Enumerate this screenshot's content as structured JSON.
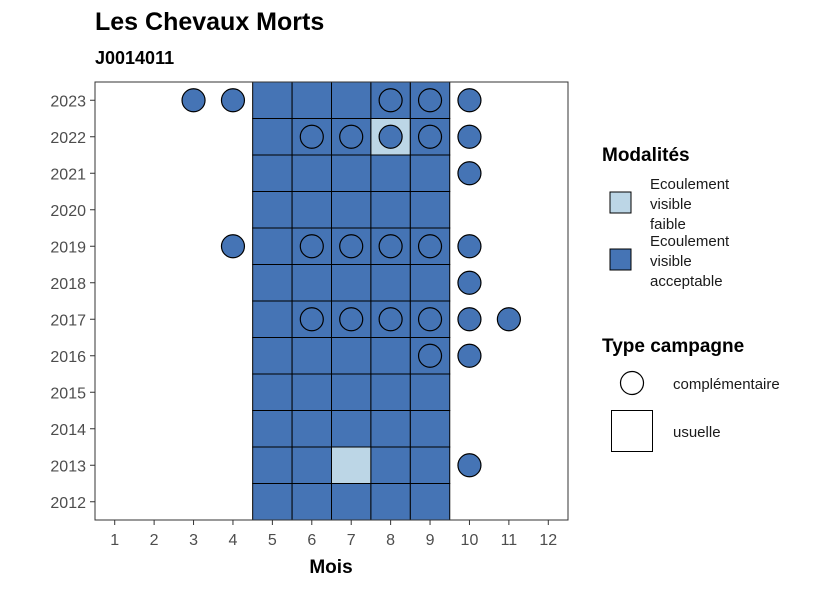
{
  "chart_data": {
    "type": "heatmap",
    "title": "Les Chevaux Morts",
    "subtitle": "J0014011",
    "xlabel": "Mois",
    "ylabel": "",
    "x_ticks": [
      1,
      2,
      3,
      4,
      5,
      6,
      7,
      8,
      9,
      10,
      11,
      12
    ],
    "y_ticks": [
      2012,
      2013,
      2014,
      2015,
      2016,
      2017,
      2018,
      2019,
      2020,
      2021,
      2022,
      2023
    ],
    "xlim": [
      0.5,
      12.5
    ],
    "ylim": [
      2011.5,
      2023.5
    ],
    "grid": false,
    "legend_position": "right",
    "colors": {
      "faible": "#bcd6e6",
      "acceptable": "#4574b5",
      "border": "#000000"
    },
    "legend": {
      "modalites_title": "Modalités",
      "modalites": [
        {
          "key": "faible",
          "label_lines": [
            "Ecoulement",
            "visible",
            "faible"
          ]
        },
        {
          "key": "acceptable",
          "label_lines": [
            "Ecoulement",
            "visible",
            "acceptable"
          ]
        }
      ],
      "type_title": "Type campagne",
      "types": [
        {
          "key": "complementaire",
          "label": "complémentaire"
        },
        {
          "key": "usuelle",
          "label": "usuelle"
        }
      ]
    },
    "observations": [
      {
        "year": 2012,
        "month": 5,
        "type": "usuelle",
        "modalite": "acceptable"
      },
      {
        "year": 2012,
        "month": 6,
        "type": "usuelle",
        "modalite": "acceptable"
      },
      {
        "year": 2012,
        "month": 7,
        "type": "usuelle",
        "modalite": "acceptable"
      },
      {
        "year": 2012,
        "month": 8,
        "type": "usuelle",
        "modalite": "acceptable"
      },
      {
        "year": 2012,
        "month": 9,
        "type": "usuelle",
        "modalite": "acceptable"
      },
      {
        "year": 2013,
        "month": 5,
        "type": "usuelle",
        "modalite": "acceptable"
      },
      {
        "year": 2013,
        "month": 6,
        "type": "usuelle",
        "modalite": "acceptable"
      },
      {
        "year": 2013,
        "month": 7,
        "type": "usuelle",
        "modalite": "faible"
      },
      {
        "year": 2013,
        "month": 8,
        "type": "usuelle",
        "modalite": "acceptable"
      },
      {
        "year": 2013,
        "month": 9,
        "type": "usuelle",
        "modalite": "acceptable"
      },
      {
        "year": 2013,
        "month": 10,
        "type": "complementaire",
        "modalite": "acceptable"
      },
      {
        "year": 2014,
        "month": 5,
        "type": "usuelle",
        "modalite": "acceptable"
      },
      {
        "year": 2014,
        "month": 6,
        "type": "usuelle",
        "modalite": "acceptable"
      },
      {
        "year": 2014,
        "month": 7,
        "type": "usuelle",
        "modalite": "acceptable"
      },
      {
        "year": 2014,
        "month": 8,
        "type": "usuelle",
        "modalite": "acceptable"
      },
      {
        "year": 2014,
        "month": 9,
        "type": "usuelle",
        "modalite": "acceptable"
      },
      {
        "year": 2015,
        "month": 5,
        "type": "usuelle",
        "modalite": "acceptable"
      },
      {
        "year": 2015,
        "month": 6,
        "type": "usuelle",
        "modalite": "acceptable"
      },
      {
        "year": 2015,
        "month": 7,
        "type": "usuelle",
        "modalite": "acceptable"
      },
      {
        "year": 2015,
        "month": 8,
        "type": "usuelle",
        "modalite": "acceptable"
      },
      {
        "year": 2015,
        "month": 9,
        "type": "usuelle",
        "modalite": "acceptable"
      },
      {
        "year": 2016,
        "month": 5,
        "type": "usuelle",
        "modalite": "acceptable"
      },
      {
        "year": 2016,
        "month": 6,
        "type": "usuelle",
        "modalite": "acceptable"
      },
      {
        "year": 2016,
        "month": 7,
        "type": "usuelle",
        "modalite": "acceptable"
      },
      {
        "year": 2016,
        "month": 8,
        "type": "usuelle",
        "modalite": "acceptable"
      },
      {
        "year": 2016,
        "month": 9,
        "type": "usuelle",
        "modalite": "acceptable"
      },
      {
        "year": 2016,
        "month": 9,
        "type": "complementaire",
        "modalite": "acceptable"
      },
      {
        "year": 2016,
        "month": 10,
        "type": "complementaire",
        "modalite": "acceptable"
      },
      {
        "year": 2017,
        "month": 5,
        "type": "usuelle",
        "modalite": "acceptable"
      },
      {
        "year": 2017,
        "month": 6,
        "type": "usuelle",
        "modalite": "acceptable"
      },
      {
        "year": 2017,
        "month": 7,
        "type": "usuelle",
        "modalite": "acceptable"
      },
      {
        "year": 2017,
        "month": 8,
        "type": "usuelle",
        "modalite": "acceptable"
      },
      {
        "year": 2017,
        "month": 9,
        "type": "usuelle",
        "modalite": "acceptable"
      },
      {
        "year": 2017,
        "month": 6,
        "type": "complementaire",
        "modalite": "acceptable"
      },
      {
        "year": 2017,
        "month": 7,
        "type": "complementaire",
        "modalite": "acceptable"
      },
      {
        "year": 2017,
        "month": 8,
        "type": "complementaire",
        "modalite": "acceptable"
      },
      {
        "year": 2017,
        "month": 9,
        "type": "complementaire",
        "modalite": "acceptable"
      },
      {
        "year": 2017,
        "month": 10,
        "type": "complementaire",
        "modalite": "acceptable"
      },
      {
        "year": 2017,
        "month": 11,
        "type": "complementaire",
        "modalite": "acceptable"
      },
      {
        "year": 2018,
        "month": 5,
        "type": "usuelle",
        "modalite": "acceptable"
      },
      {
        "year": 2018,
        "month": 6,
        "type": "usuelle",
        "modalite": "acceptable"
      },
      {
        "year": 2018,
        "month": 7,
        "type": "usuelle",
        "modalite": "acceptable"
      },
      {
        "year": 2018,
        "month": 8,
        "type": "usuelle",
        "modalite": "acceptable"
      },
      {
        "year": 2018,
        "month": 9,
        "type": "usuelle",
        "modalite": "acceptable"
      },
      {
        "year": 2018,
        "month": 10,
        "type": "complementaire",
        "modalite": "acceptable"
      },
      {
        "year": 2019,
        "month": 5,
        "type": "usuelle",
        "modalite": "acceptable"
      },
      {
        "year": 2019,
        "month": 6,
        "type": "usuelle",
        "modalite": "acceptable"
      },
      {
        "year": 2019,
        "month": 7,
        "type": "usuelle",
        "modalite": "acceptable"
      },
      {
        "year": 2019,
        "month": 8,
        "type": "usuelle",
        "modalite": "acceptable"
      },
      {
        "year": 2019,
        "month": 9,
        "type": "usuelle",
        "modalite": "acceptable"
      },
      {
        "year": 2019,
        "month": 4,
        "type": "complementaire",
        "modalite": "acceptable"
      },
      {
        "year": 2019,
        "month": 6,
        "type": "complementaire",
        "modalite": "acceptable"
      },
      {
        "year": 2019,
        "month": 7,
        "type": "complementaire",
        "modalite": "acceptable"
      },
      {
        "year": 2019,
        "month": 8,
        "type": "complementaire",
        "modalite": "acceptable"
      },
      {
        "year": 2019,
        "month": 9,
        "type": "complementaire",
        "modalite": "acceptable"
      },
      {
        "year": 2019,
        "month": 10,
        "type": "complementaire",
        "modalite": "acceptable"
      },
      {
        "year": 2020,
        "month": 5,
        "type": "usuelle",
        "modalite": "acceptable"
      },
      {
        "year": 2020,
        "month": 6,
        "type": "usuelle",
        "modalite": "acceptable"
      },
      {
        "year": 2020,
        "month": 7,
        "type": "usuelle",
        "modalite": "acceptable"
      },
      {
        "year": 2020,
        "month": 8,
        "type": "usuelle",
        "modalite": "acceptable"
      },
      {
        "year": 2020,
        "month": 9,
        "type": "usuelle",
        "modalite": "acceptable"
      },
      {
        "year": 2021,
        "month": 5,
        "type": "usuelle",
        "modalite": "acceptable"
      },
      {
        "year": 2021,
        "month": 6,
        "type": "usuelle",
        "modalite": "acceptable"
      },
      {
        "year": 2021,
        "month": 7,
        "type": "usuelle",
        "modalite": "acceptable"
      },
      {
        "year": 2021,
        "month": 8,
        "type": "usuelle",
        "modalite": "acceptable"
      },
      {
        "year": 2021,
        "month": 9,
        "type": "usuelle",
        "modalite": "acceptable"
      },
      {
        "year": 2021,
        "month": 10,
        "type": "complementaire",
        "modalite": "acceptable"
      },
      {
        "year": 2022,
        "month": 5,
        "type": "usuelle",
        "modalite": "acceptable"
      },
      {
        "year": 2022,
        "month": 6,
        "type": "usuelle",
        "modalite": "acceptable"
      },
      {
        "year": 2022,
        "month": 7,
        "type": "usuelle",
        "modalite": "acceptable"
      },
      {
        "year": 2022,
        "month": 8,
        "type": "usuelle",
        "modalite": "faible"
      },
      {
        "year": 2022,
        "month": 9,
        "type": "usuelle",
        "modalite": "acceptable"
      },
      {
        "year": 2022,
        "month": 6,
        "type": "complementaire",
        "modalite": "acceptable"
      },
      {
        "year": 2022,
        "month": 7,
        "type": "complementaire",
        "modalite": "acceptable"
      },
      {
        "year": 2022,
        "month": 8,
        "type": "complementaire",
        "modalite": "acceptable"
      },
      {
        "year": 2022,
        "month": 9,
        "type": "complementaire",
        "modalite": "acceptable"
      },
      {
        "year": 2022,
        "month": 10,
        "type": "complementaire",
        "modalite": "acceptable"
      },
      {
        "year": 2023,
        "month": 5,
        "type": "usuelle",
        "modalite": "acceptable"
      },
      {
        "year": 2023,
        "month": 6,
        "type": "usuelle",
        "modalite": "acceptable"
      },
      {
        "year": 2023,
        "month": 7,
        "type": "usuelle",
        "modalite": "acceptable"
      },
      {
        "year": 2023,
        "month": 8,
        "type": "usuelle",
        "modalite": "acceptable"
      },
      {
        "year": 2023,
        "month": 9,
        "type": "usuelle",
        "modalite": "acceptable"
      },
      {
        "year": 2023,
        "month": 3,
        "type": "complementaire",
        "modalite": "acceptable"
      },
      {
        "year": 2023,
        "month": 4,
        "type": "complementaire",
        "modalite": "acceptable"
      },
      {
        "year": 2023,
        "month": 8,
        "type": "complementaire",
        "modalite": "acceptable"
      },
      {
        "year": 2023,
        "month": 9,
        "type": "complementaire",
        "modalite": "acceptable"
      },
      {
        "year": 2023,
        "month": 10,
        "type": "complementaire",
        "modalite": "acceptable"
      }
    ]
  }
}
